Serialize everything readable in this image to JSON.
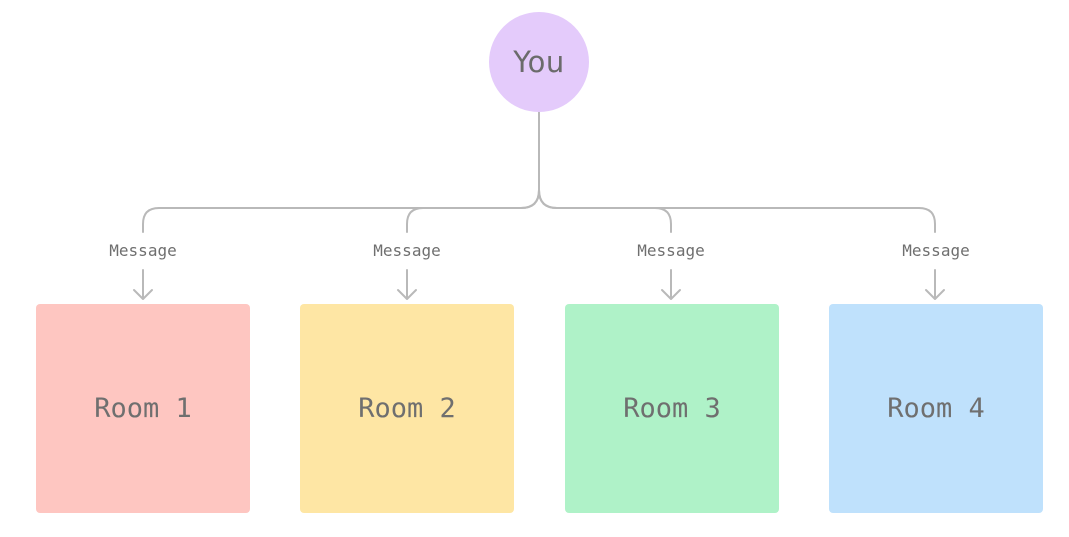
{
  "you": {
    "label": "You",
    "color": "#e4cbfb"
  },
  "connector_color": "#b9b9b9",
  "rooms": [
    {
      "label": "Room 1",
      "message": "Message",
      "color": "#fec6c1"
    },
    {
      "label": "Room 2",
      "message": "Message",
      "color": "#fee6a4"
    },
    {
      "label": "Room 3",
      "message": "Message",
      "color": "#aff2c8"
    },
    {
      "label": "Room 4",
      "message": "Message",
      "color": "#bfe1fc"
    }
  ]
}
